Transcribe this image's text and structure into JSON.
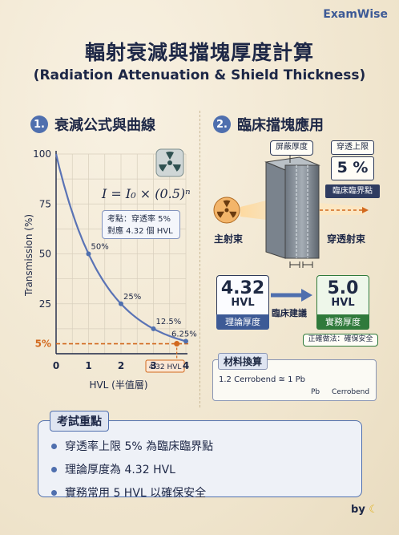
{
  "brand": "ExamWise",
  "title_zh": "輻射衰減與擋塊厚度計算",
  "title_en": "(Radiation Attenuation & Shield Thickness)",
  "section1": {
    "num": "1.",
    "title": "衰減公式與曲線"
  },
  "section2": {
    "num": "2.",
    "title": "臨床擋塊應用"
  },
  "formula": "I = I₀ × (0.5)ⁿ",
  "exam_note": {
    "line1": "考點：穿透率 5%",
    "line2": "對應 4.32 個 HVL"
  },
  "chart_data": {
    "type": "line",
    "xlabel": "HVL (半值層)",
    "ylabel": "Transmission (%)",
    "xlim": [
      0,
      4
    ],
    "ylim": [
      0,
      100
    ],
    "x_ticks": [
      "0",
      "1",
      "2",
      "3",
      "4"
    ],
    "y_ticks": [
      "25",
      "50",
      "75",
      "100"
    ],
    "series": [
      {
        "x": [
          0,
          0.5,
          1,
          1.5,
          2,
          2.5,
          3,
          3.5,
          4
        ],
        "values": [
          100,
          70.7,
          50,
          35.4,
          25,
          17.7,
          12.5,
          8.84,
          6.25
        ]
      }
    ],
    "points": [
      {
        "x": 1,
        "y": 50,
        "label": "50%"
      },
      {
        "x": 2,
        "y": 25,
        "label": "25%"
      },
      {
        "x": 3,
        "y": 12.5,
        "label": "12.5%"
      },
      {
        "x": 4,
        "y": 6.25,
        "label": "6.25%"
      }
    ],
    "threshold": {
      "y": 5,
      "label": "5%"
    },
    "marker": {
      "x": 4.32,
      "label": "4.32 HVL"
    }
  },
  "clinic": {
    "shield_label": "屏蔽厚度",
    "limit_title": "穿透上限",
    "limit_value": "5 %",
    "critical_point": "臨床臨界點",
    "main_beam": "主射束",
    "transmitted_beam": "穿透射束"
  },
  "hvl_theory": {
    "value": "4.32",
    "unit": "HVL",
    "label": "理論厚度"
  },
  "hvl_practice": {
    "value": "5.0",
    "unit": "HVL",
    "label": "實務厚度"
  },
  "clinical_advice": "臨床建議",
  "practice_note": "正確做法：確保安全",
  "material": {
    "title": "材料換算",
    "equation": "1.2 Cerrobend ≅ 1 Pb",
    "pb": "Pb",
    "cerrobend": "Cerrobend"
  },
  "key_points": {
    "title": "考試重點",
    "items": [
      "穿透率上限 5% 為臨床臨界點",
      "理論厚度為 4.32 HVL",
      "實務常用 5 HVL 以確保安全"
    ]
  },
  "byline": "by",
  "colors": {
    "accent": "#4f6fae",
    "orange": "#d2691e",
    "green": "#2f7a3b",
    "navy": "#1d2746"
  }
}
